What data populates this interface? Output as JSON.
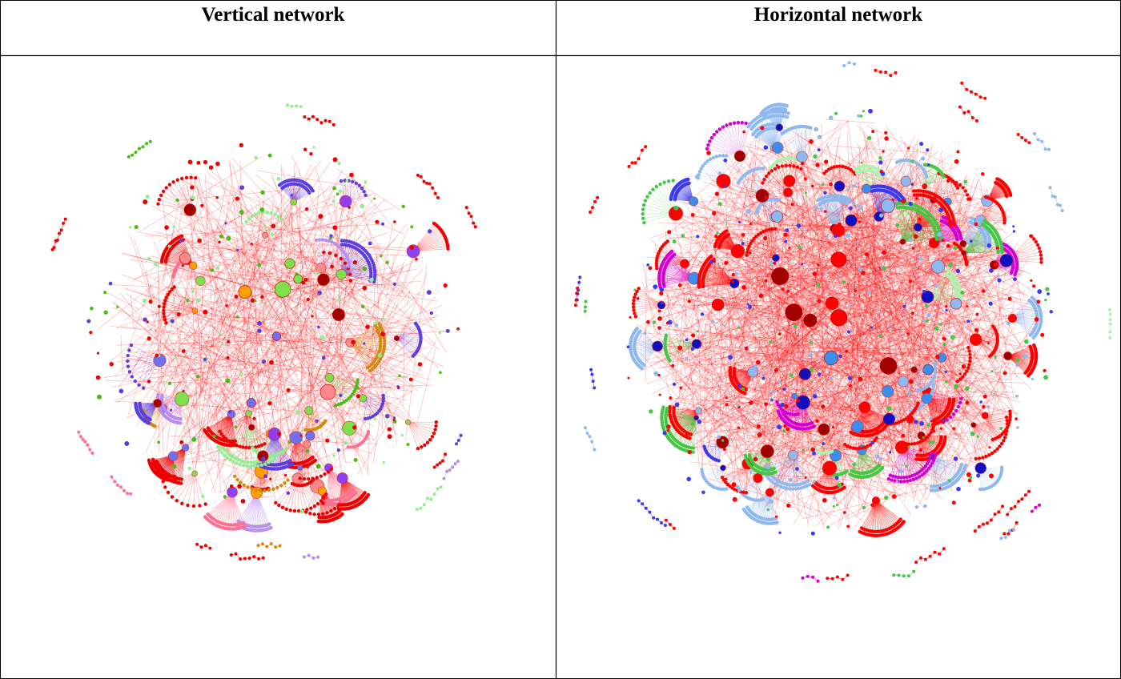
{
  "table": {
    "headers": [
      "Vertical network",
      "Horizontal network"
    ]
  }
}
